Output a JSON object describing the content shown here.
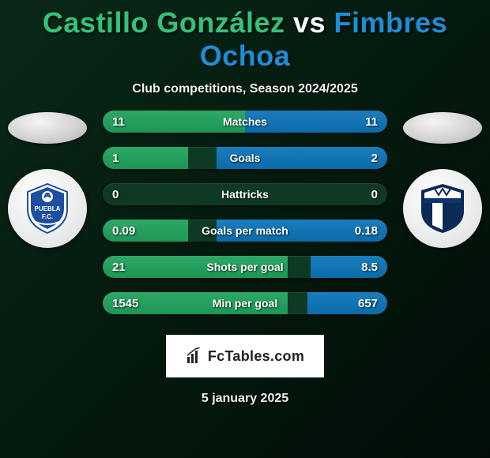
{
  "title": {
    "player1": "Castillo González",
    "vs": "vs",
    "player2": "Fimbres Ochoa",
    "color1": "#34c27a",
    "color_vs": "#ffffff",
    "color2": "#1f8dd6"
  },
  "subtitle": "Club competitions, Season 2024/2025",
  "watermark": "FcTables.com",
  "datestamp": "5 january 2025",
  "bar_colors": {
    "track": "#0e3a24",
    "left_fill": "#2fa867",
    "right_fill": "#1b7dbb"
  },
  "stats": [
    {
      "label": "Matches",
      "left_val": "11",
      "right_val": "11",
      "left_pct": 50,
      "right_pct": 50
    },
    {
      "label": "Goals",
      "left_val": "1",
      "right_val": "2",
      "left_pct": 30,
      "right_pct": 60
    },
    {
      "label": "Hattricks",
      "left_val": "0",
      "right_val": "0",
      "left_pct": 0,
      "right_pct": 0
    },
    {
      "label": "Goals per match",
      "left_val": "0.09",
      "right_val": "0.18",
      "left_pct": 30,
      "right_pct": 60
    },
    {
      "label": "Shots per goal",
      "left_val": "21",
      "right_val": "8.5",
      "left_pct": 65,
      "right_pct": 27
    },
    {
      "label": "Min per goal",
      "left_val": "1545",
      "right_val": "657",
      "left_pct": 65,
      "right_pct": 28
    }
  ],
  "team_left": {
    "crest_primary": "#1c4fa0",
    "crest_secondary": "#ffffff",
    "crest_accent": "#27407a"
  },
  "team_right": {
    "crest_primary": "#0b2a56",
    "crest_secondary": "#ffffff",
    "crest_accent": "#10356e"
  }
}
